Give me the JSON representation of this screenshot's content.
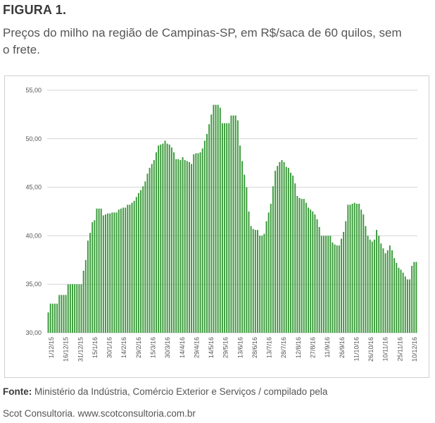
{
  "figure": {
    "title": "FIGURA 1.",
    "subtitle": "Preços do milho na região de Campinas-SP, em R$/saca de 60 quilos, sem o frete."
  },
  "footer": {
    "source_label": "Fonte:",
    "source_text": " Ministério da Indústria, Comércio Exterior e Serviços / compilado pela",
    "source_text2": "Scot Consultoria. www.scotconsultoria.com.br"
  },
  "chart_data": {
    "type": "bar",
    "bar_color": "#3a9a3a",
    "grid": true,
    "ylim": [
      30,
      55
    ],
    "yticks": [
      "30,00",
      "35,00",
      "40,00",
      "45,00",
      "50,00",
      "55,00"
    ],
    "xticks": [
      "1/12/15",
      "16/12/15",
      "31/12/15",
      "15/1/16",
      "30/1/16",
      "14/2/16",
      "29/2/16",
      "15/3/16",
      "30/3/16",
      "14/4/16",
      "29/4/16",
      "14/5/16",
      "29/5/16",
      "13/6/16",
      "28/6/16",
      "13/7/16",
      "28/7/16",
      "12/8/16",
      "27/8/16",
      "11/9/16",
      "26/9/16",
      "11/10/16",
      "26/10/16",
      "10/11/16",
      "25/11/16",
      "10/12/16"
    ],
    "values": [
      32.1,
      33.0,
      33.0,
      33.0,
      33.0,
      33.9,
      33.9,
      33.9,
      33.9,
      35.0,
      35.0,
      35.0,
      35.0,
      35.0,
      35.0,
      35.0,
      36.4,
      37.5,
      39.5,
      40.3,
      41.4,
      41.6,
      42.8,
      42.8,
      42.8,
      42.1,
      42.2,
      42.3,
      42.3,
      42.4,
      42.4,
      42.4,
      42.7,
      42.8,
      42.9,
      42.9,
      43.2,
      43.2,
      43.4,
      43.6,
      44.0,
      44.4,
      44.7,
      45.1,
      45.6,
      46.4,
      47.0,
      47.4,
      47.8,
      48.6,
      49.3,
      49.4,
      49.5,
      49.8,
      49.5,
      49.4,
      49.1,
      48.6,
      47.9,
      47.9,
      47.8,
      48.1,
      47.8,
      47.7,
      47.6,
      47.4,
      48.4,
      48.5,
      48.5,
      48.6,
      49.0,
      49.8,
      50.5,
      51.5,
      52.5,
      53.5,
      53.5,
      53.5,
      53.2,
      51.6,
      51.6,
      51.6,
      51.6,
      52.4,
      52.4,
      52.4,
      51.9,
      49.3,
      47.7,
      46.3,
      45.0,
      42.5,
      41.0,
      40.7,
      40.6,
      40.6,
      40.0,
      40.0,
      40.2,
      41.5,
      42.4,
      43.3,
      45.1,
      46.7,
      47.2,
      47.6,
      47.8,
      47.6,
      47.1,
      47.0,
      46.5,
      46.2,
      45.4,
      44.1,
      43.9,
      43.8,
      43.8,
      43.4,
      42.9,
      42.7,
      42.5,
      42.2,
      41.7,
      40.9,
      40.0,
      40.0,
      40.0,
      40.0,
      40.0,
      39.3,
      39.1,
      39.0,
      39.0,
      39.7,
      40.4,
      41.5,
      43.2,
      43.2,
      43.3,
      43.4,
      43.3,
      43.3,
      42.7,
      42.2,
      41.0,
      40.0,
      39.6,
      39.4,
      39.6,
      40.6,
      40.0,
      39.2,
      38.7,
      38.2,
      38.5,
      39.0,
      38.5,
      37.7,
      37.2,
      36.7,
      36.5,
      36.2,
      35.8,
      35.5,
      35.5,
      36.9,
      37.3,
      37.3
    ]
  }
}
